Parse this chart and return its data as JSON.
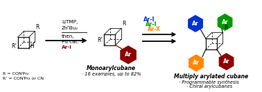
{
  "bg_color": "#ffffff",
  "color_blue": "#0033cc",
  "color_green": "#009900",
  "color_orange": "#ff8800",
  "color_darkred": "#8b0000",
  "cubane_color": "#222222",
  "label_r": "R",
  "label_rprime": "R’",
  "label_h": "H",
  "label_ar": "Ar",
  "r_def": "R = CONⁱPr₂",
  "rprime_def": "R’ = CONⁱPr₂ or CN",
  "ar_i_blue": "Ar-I",
  "ar_i_green": "Ar-I",
  "ar_x_orange": "Ar-X",
  "monoaryl_label": "Monoarylcubane",
  "monoaryl_sub1": "· 16 examples, up to 82%",
  "multi_label": "Multiply arylated cubane",
  "multi_sub1": "· Programmable synthesis",
  "multi_sub2": "· Chiral arylcubanes",
  "figw": 3.78,
  "figh": 1.34,
  "dpi": 100
}
